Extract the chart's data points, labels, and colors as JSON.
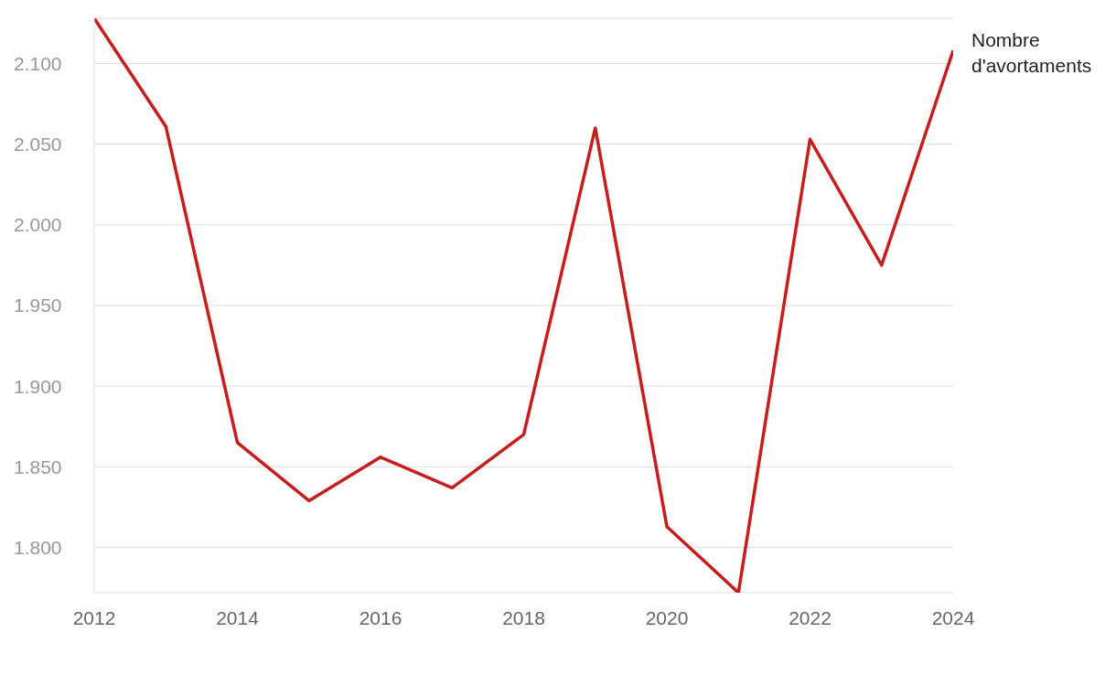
{
  "chart_data": {
    "type": "line",
    "x": [
      2012,
      2013,
      2014,
      2015,
      2016,
      2017,
      2018,
      2019,
      2020,
      2021,
      2022,
      2023,
      2024
    ],
    "series": [
      {
        "name": "Nombre d'avortaments",
        "color": "#c71e1d",
        "values": [
          2128,
          2061,
          1865,
          1829,
          1856,
          1837,
          1870,
          2060,
          1813,
          1772,
          2053,
          1975,
          2108
        ]
      }
    ],
    "xlim": [
      2012,
      2024
    ],
    "xticks": [
      2012,
      2014,
      2016,
      2018,
      2020,
      2022,
      2024
    ],
    "ylim": [
      1772,
      2128
    ],
    "yticks": [
      {
        "value": 1800,
        "label": "1.800"
      },
      {
        "value": 1850,
        "label": "1.850"
      },
      {
        "value": 1900,
        "label": "1.900"
      },
      {
        "value": 1950,
        "label": "1.950"
      },
      {
        "value": 2000,
        "label": "2.000"
      },
      {
        "value": 2050,
        "label": "2.050"
      },
      {
        "value": 2100,
        "label": "2.100"
      }
    ],
    "grid": "y",
    "legend": false,
    "marker": "none",
    "line_style": "solid"
  }
}
